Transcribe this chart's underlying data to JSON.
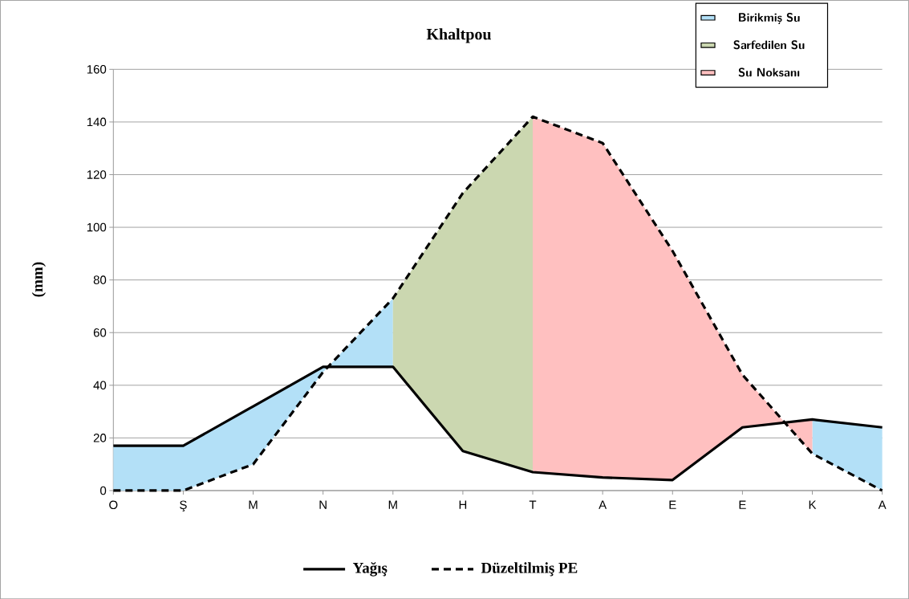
{
  "chart_data": {
    "type": "line",
    "title": "Khaltpou",
    "ylabel": "(mm)",
    "categories": [
      "O",
      "Ş",
      "M",
      "N",
      "M",
      "H",
      "T",
      "A",
      "E",
      "E",
      "K",
      "A"
    ],
    "ylim": [
      0,
      160
    ],
    "yticks": [
      0,
      20,
      40,
      60,
      80,
      100,
      120,
      140,
      160
    ],
    "grid": "y",
    "legend": "bottom",
    "series": [
      {
        "name": "Birikmiş Su",
        "color": "#b3e0f7",
        "values": [
          null,
          null,
          null,
          null,
          null,
          null,
          null,
          null,
          null,
          null,
          null,
          null
        ],
        "upper": [
          17,
          17,
          32,
          47,
          47,
          null,
          null,
          null,
          null,
          null,
          27,
          24
        ],
        "lower": [
          0,
          0,
          10,
          45,
          73,
          null,
          null,
          null,
          null,
          null,
          14,
          0
        ]
      },
      {
        "name": "Sarfedilen Su",
        "color": "#cbd7b0",
        "values": [
          null,
          null,
          null,
          null,
          null,
          null,
          null,
          null,
          null,
          null,
          null,
          null
        ],
        "upper": [
          null,
          null,
          null,
          null,
          73,
          113,
          142,
          null,
          null,
          null,
          null,
          null
        ],
        "lower": [
          null,
          null,
          null,
          null,
          47,
          15,
          7,
          null,
          null,
          null,
          null,
          null
        ]
      },
      {
        "name": "Su Noksanı",
        "color": "#ffc0c0",
        "values": [
          null,
          null,
          null,
          null,
          null,
          null,
          null,
          null,
          null,
          null,
          null,
          null
        ],
        "upper": [
          null,
          null,
          null,
          null,
          null,
          null,
          142,
          132,
          91,
          44,
          14,
          null
        ],
        "lower": [
          null,
          null,
          null,
          null,
          null,
          null,
          7,
          5,
          4,
          24,
          27,
          null
        ]
      },
      {
        "name": "Yağış",
        "color": "#000000",
        "line_style": "solid",
        "values": [
          17,
          17,
          32,
          47,
          47,
          15,
          7,
          5,
          4,
          24,
          27,
          24
        ]
      },
      {
        "name": "Düzeltilmiş PE",
        "color": "#000000",
        "line_style": "dashed",
        "values": [
          0,
          0,
          10,
          45,
          73,
          113,
          142,
          132,
          91,
          44,
          14,
          0
        ]
      }
    ]
  }
}
